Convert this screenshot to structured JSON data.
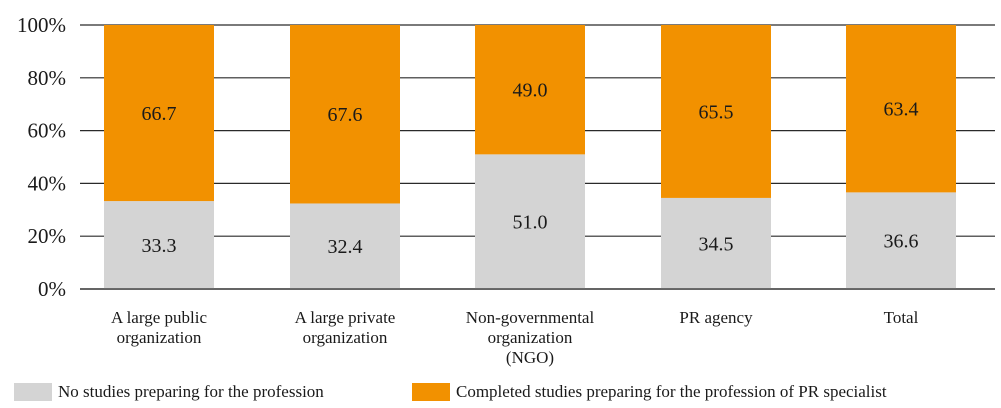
{
  "chart_data": {
    "type": "bar",
    "stacked": true,
    "percent_axis": true,
    "categories": [
      [
        "A large public",
        "organization"
      ],
      [
        "A large private",
        "organization"
      ],
      [
        "Non-governmental",
        "organization",
        "(NGO)"
      ],
      [
        "PR agency"
      ],
      [
        "Total"
      ]
    ],
    "series": [
      {
        "name": "No studies preparing for the profession",
        "values": [
          33.3,
          32.4,
          51.0,
          34.5,
          36.6
        ],
        "labels": [
          "33.3",
          "32.4",
          "51.0",
          "34.5",
          "36.6"
        ],
        "color": "#d4d4d4"
      },
      {
        "name": "Completed studies preparing for the profession of PR specialist",
        "values": [
          66.7,
          67.6,
          49.0,
          65.5,
          63.4
        ],
        "labels": [
          "66.7",
          "67.6",
          "49.0",
          "65.5",
          "63.4"
        ],
        "color": "#f29100"
      }
    ],
    "ylim": [
      0,
      100
    ],
    "yticks": [
      "0%",
      "20%",
      "40%",
      "60%",
      "80%",
      "100%"
    ],
    "grid": true,
    "legend_position": "bottom",
    "title": "",
    "xlabel": "",
    "ylabel": ""
  }
}
